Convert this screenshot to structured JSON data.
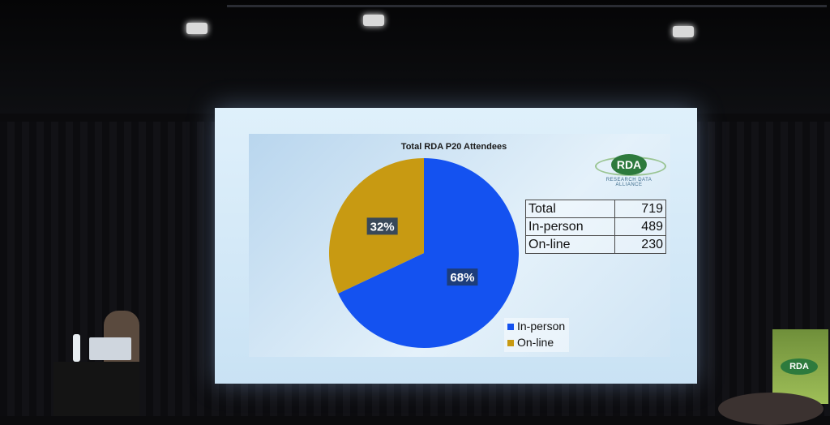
{
  "chart_data": {
    "type": "pie",
    "title": "Total RDA P20 Attendees",
    "series": [
      {
        "name": "In-person",
        "value": 68,
        "label": "68%",
        "color": "#1452f0"
      },
      {
        "name": "On-line",
        "value": 32,
        "label": "32%",
        "color": "#c89a12"
      }
    ],
    "legend_position": "bottom-right"
  },
  "table": {
    "rows": [
      {
        "label": "Total",
        "value": "719"
      },
      {
        "label": "In-person",
        "value": "489"
      },
      {
        "label": "On-line",
        "value": "230"
      }
    ]
  },
  "logo": {
    "text": "RDA",
    "subtitle": "RESEARCH DATA ALLIANCE"
  },
  "banner": {
    "text": "RDA"
  }
}
